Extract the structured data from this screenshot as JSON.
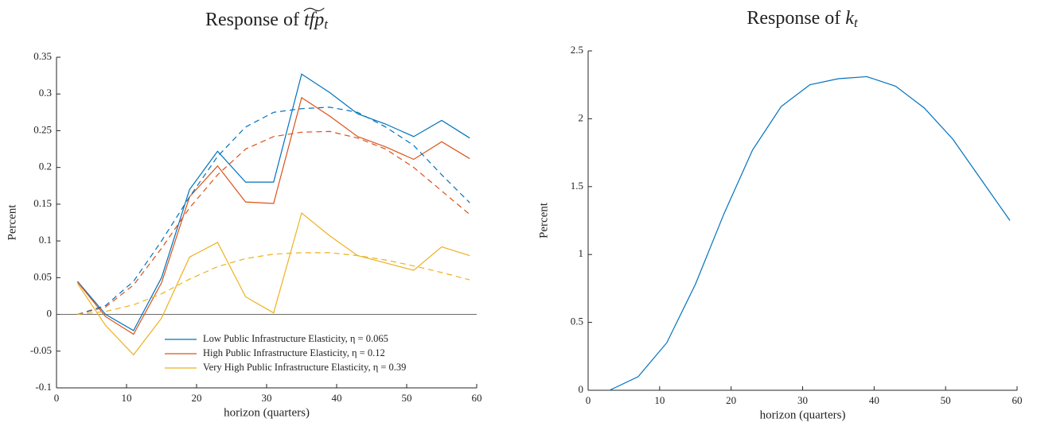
{
  "chart_data": [
    {
      "type": "line",
      "title": "Response of",
      "title_var": "tfp",
      "title_sub": "t",
      "title_accent": "wide-tilde",
      "xlabel": "horizon (quarters)",
      "ylabel": "Percent",
      "x": [
        3,
        7,
        11,
        15,
        19,
        23,
        27,
        31,
        35,
        39,
        43,
        47,
        51,
        55,
        59
      ],
      "xlim": [
        0,
        60
      ],
      "xticks": [
        0,
        10,
        20,
        30,
        40,
        50,
        60
      ],
      "ylim": [
        -0.1,
        0.35
      ],
      "yticks": [
        -0.1,
        -0.05,
        0,
        0.05,
        0.1,
        0.15,
        0.2,
        0.25,
        0.3,
        0.35
      ],
      "zero_line": true,
      "legend": "lower center",
      "series": [
        {
          "name": "Low Public Infrastructure Elasticity, η = 0.065",
          "color": "#0072BD",
          "style": "solid",
          "values": [
            0.045,
            0.0,
            -0.022,
            0.05,
            0.17,
            0.222,
            0.18,
            0.18,
            0.327,
            0.302,
            0.273,
            0.259,
            0.242,
            0.264,
            0.24
          ]
        },
        {
          "name": "High Public Infrastructure Elasticity, η = 0.12",
          "color": "#D95319",
          "style": "solid",
          "values": [
            0.044,
            -0.003,
            -0.027,
            0.043,
            0.16,
            0.202,
            0.153,
            0.151,
            0.295,
            0.27,
            0.242,
            0.228,
            0.211,
            0.235,
            0.212
          ]
        },
        {
          "name": "Very High Public Infrastructure Elasticity, η = 0.39",
          "color": "#EDB120",
          "style": "solid",
          "values": [
            0.042,
            -0.015,
            -0.055,
            -0.005,
            0.078,
            0.098,
            0.024,
            0.002,
            0.138,
            0.107,
            0.08,
            0.07,
            0.06,
            0.092,
            0.08
          ]
        },
        {
          "color": "#0072BD",
          "style": "dashed",
          "values": [
            0,
            0.012,
            0.045,
            0.1,
            0.16,
            0.215,
            0.255,
            0.275,
            0.28,
            0.282,
            0.275,
            0.255,
            0.23,
            0.19,
            0.152
          ]
        },
        {
          "color": "#D95319",
          "style": "dashed",
          "values": [
            0,
            0.01,
            0.04,
            0.09,
            0.145,
            0.19,
            0.225,
            0.242,
            0.248,
            0.249,
            0.24,
            0.225,
            0.2,
            0.168,
            0.136
          ]
        },
        {
          "color": "#EDB120",
          "style": "dashed",
          "values": [
            0,
            0.004,
            0.013,
            0.028,
            0.048,
            0.065,
            0.076,
            0.082,
            0.084,
            0.084,
            0.08,
            0.074,
            0.066,
            0.057,
            0.047
          ]
        }
      ]
    },
    {
      "type": "line",
      "title": "Response of",
      "title_var": "k",
      "title_sub": "t",
      "xlabel": "horizon (quarters)",
      "ylabel": "Percent",
      "x": [
        3,
        7,
        11,
        15,
        19,
        23,
        27,
        31,
        35,
        39,
        43,
        47,
        51,
        55,
        59
      ],
      "xlim": [
        0,
        60
      ],
      "xticks": [
        0,
        10,
        20,
        30,
        40,
        50,
        60
      ],
      "ylim": [
        0,
        2.5
      ],
      "yticks": [
        0,
        0.5,
        1,
        1.5,
        2,
        2.5
      ],
      "series": [
        {
          "color": "#0072BD",
          "style": "solid",
          "values": [
            0.0,
            0.1,
            0.35,
            0.78,
            1.3,
            1.77,
            2.09,
            2.25,
            2.295,
            2.31,
            2.24,
            2.08,
            1.85,
            1.55,
            1.25
          ]
        }
      ]
    }
  ]
}
